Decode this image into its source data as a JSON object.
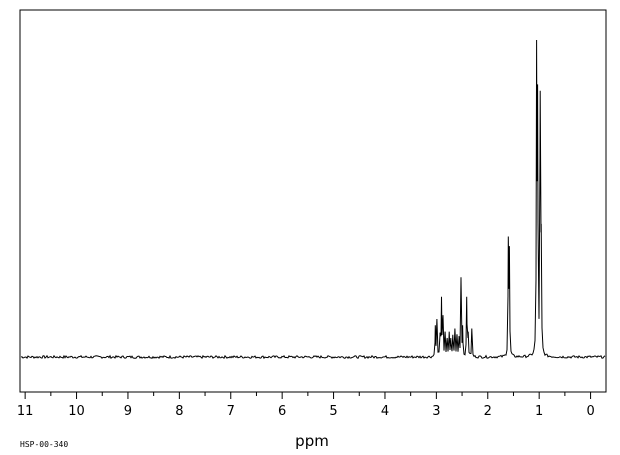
{
  "chart_data": {
    "type": "line",
    "title": "",
    "xlabel": "ppm",
    "ylabel": "",
    "spectrum_id": "HSP-00-340",
    "x_reversed": true,
    "xlim": [
      11.1,
      -0.3
    ],
    "ylim": [
      0,
      1
    ],
    "grid": false,
    "major_ticks": [
      11,
      10,
      9,
      8,
      7,
      6,
      5,
      4,
      3,
      2,
      1,
      0
    ],
    "tick_labels": [
      "11",
      "10",
      "9",
      "8",
      "7",
      "6",
      "5",
      "4",
      "3",
      "2",
      "1",
      "0"
    ],
    "baseline": 0.0,
    "series": [
      {
        "peaks": [
          {
            "ppm": 3.02,
            "height": 0.1
          },
          {
            "ppm": 2.99,
            "height": 0.12
          },
          {
            "ppm": 2.93,
            "height": 0.07
          },
          {
            "ppm": 2.9,
            "height": 0.19
          },
          {
            "ppm": 2.87,
            "height": 0.12
          },
          {
            "ppm": 2.83,
            "height": 0.08
          },
          {
            "ppm": 2.79,
            "height": 0.06
          },
          {
            "ppm": 2.75,
            "height": 0.08
          },
          {
            "ppm": 2.72,
            "height": 0.06
          },
          {
            "ppm": 2.68,
            "height": 0.07
          },
          {
            "ppm": 2.64,
            "height": 0.09
          },
          {
            "ppm": 2.6,
            "height": 0.07
          },
          {
            "ppm": 2.56,
            "height": 0.06
          },
          {
            "ppm": 2.52,
            "height": 0.25
          },
          {
            "ppm": 2.49,
            "height": 0.1
          },
          {
            "ppm": 2.41,
            "height": 0.19
          },
          {
            "ppm": 2.38,
            "height": 0.08
          },
          {
            "ppm": 2.31,
            "height": 0.09
          },
          {
            "ppm": 1.6,
            "height": 0.38
          },
          {
            "ppm": 1.58,
            "height": 0.35
          },
          {
            "ppm": 1.05,
            "height": 1.0
          },
          {
            "ppm": 1.03,
            "height": 0.86
          },
          {
            "ppm": 0.98,
            "height": 0.84
          },
          {
            "ppm": 0.96,
            "height": 0.42
          }
        ]
      }
    ]
  }
}
